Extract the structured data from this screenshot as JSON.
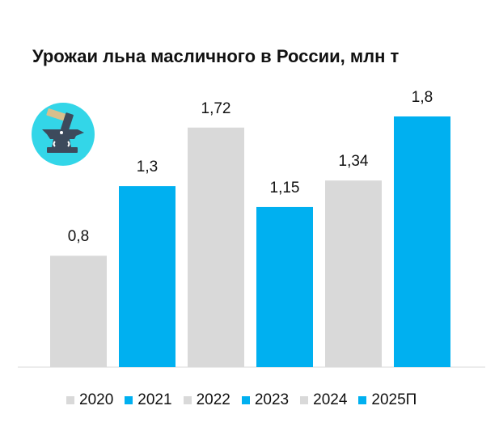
{
  "chart_data": {
    "type": "bar",
    "title": "Урожаи льна масличного в России, млн т",
    "categories": [
      "2020",
      "2021",
      "2022",
      "2023",
      "2024",
      "2025П"
    ],
    "values": [
      0.8,
      1.3,
      1.72,
      1.15,
      1.34,
      1.8
    ],
    "data_labels": [
      "0,8",
      "1,3",
      "1,72",
      "1,15",
      "1,34",
      "1,8"
    ],
    "colors": [
      "#d9d9d9",
      "#00b0f0",
      "#d9d9d9",
      "#00b0f0",
      "#d9d9d9",
      "#00b0f0"
    ],
    "ylim": [
      0,
      1.8
    ],
    "grid": false,
    "legend_position": "bottom",
    "xlabel": "",
    "ylabel": ""
  },
  "logo": {
    "icon": "anvil-hammer-icon",
    "background_color": "#33d6e8"
  }
}
